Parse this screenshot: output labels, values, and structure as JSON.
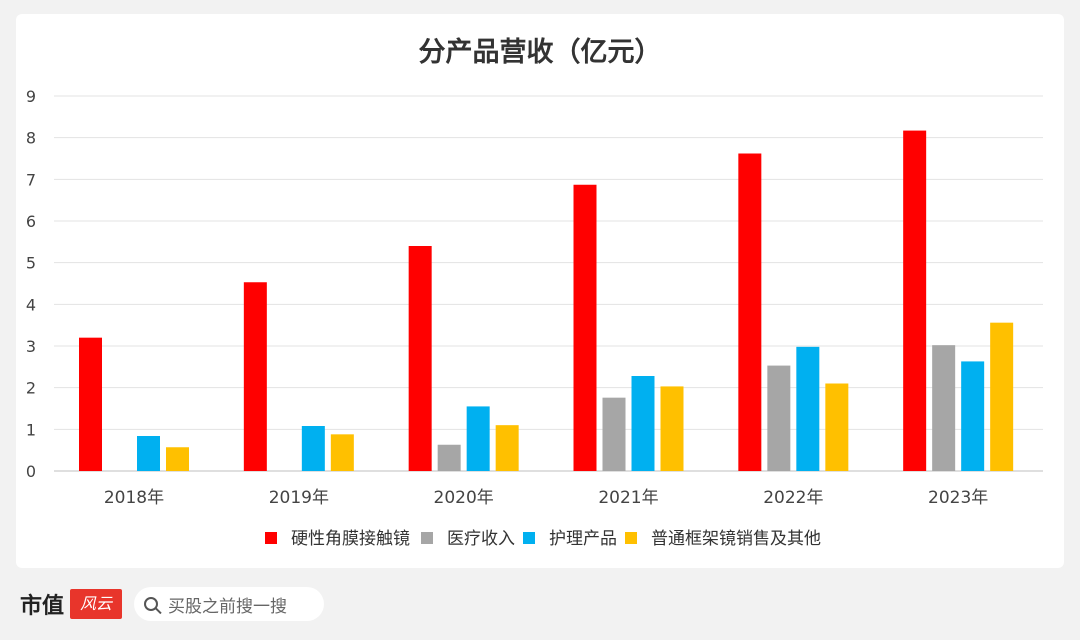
{
  "chart_data": {
    "type": "bar",
    "title": "分产品营收（亿元）",
    "categories": [
      "2018年",
      "2019年",
      "2020年",
      "2021年",
      "2022年",
      "2023年"
    ],
    "series": [
      {
        "name": "硬性角膜接触镜",
        "color": "#ff0000",
        "values": [
          3.2,
          4.53,
          5.4,
          6.87,
          7.62,
          8.17
        ]
      },
      {
        "name": "医疗收入",
        "color": "#a6a6a6",
        "values": [
          null,
          null,
          0.63,
          1.76,
          2.53,
          3.02
        ]
      },
      {
        "name": "护理产品",
        "color": "#00b0f0",
        "values": [
          0.84,
          1.08,
          1.55,
          2.28,
          2.98,
          2.63
        ]
      },
      {
        "name": "普通框架镜销售及其他",
        "color": "#ffc000",
        "values": [
          0.57,
          0.88,
          1.1,
          2.03,
          2.1,
          3.56
        ]
      }
    ],
    "ylim": [
      0,
      9
    ],
    "yticks": [
      0,
      1,
      2,
      3,
      4,
      5,
      6,
      7,
      8,
      9
    ],
    "grid": true,
    "legend": "bottom"
  },
  "footer": {
    "brand": "市值",
    "brand_logo": "风云",
    "search_placeholder": "买股之前搜一搜"
  }
}
